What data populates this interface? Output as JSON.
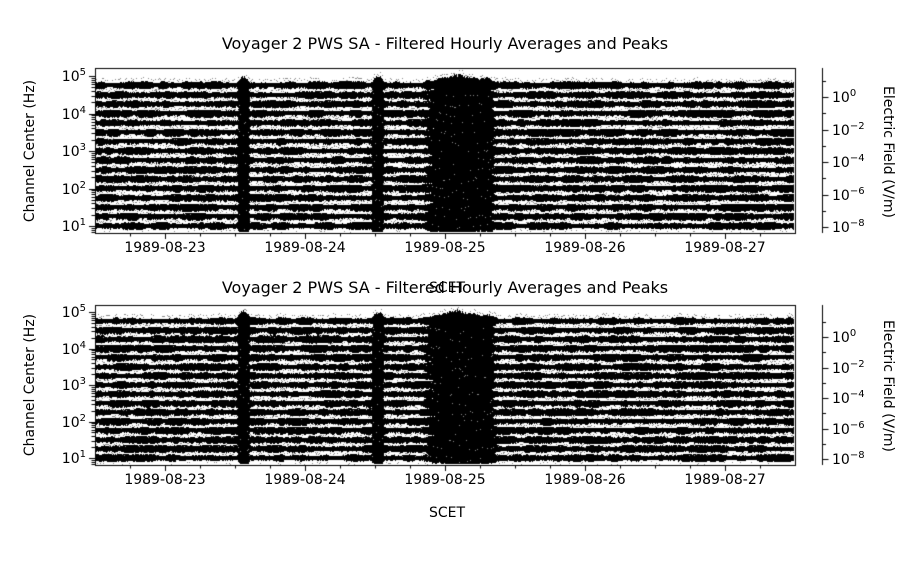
{
  "colors": {
    "background": "#ffffff",
    "axis": "#000000",
    "trace": "#000000",
    "speckle": "#8c8c8c"
  },
  "chart_data": [
    {
      "type": "line",
      "title": "Voyager 2 PWS SA - Filtered Hourly Averages and Peaks",
      "xlabel": "SCET",
      "ylabel": "Channel Center (Hz)",
      "ylabel_right": "Electric Field (V/m)",
      "x_ticks": [
        "1989-08-23",
        "1989-08-24",
        "1989-08-25",
        "1989-08-26",
        "1989-08-27"
      ],
      "x_range": [
        "1989-08-22 12:00",
        "1989-08-27 12:00"
      ],
      "y_scale": "log",
      "y_ticks_left": [
        "10^5",
        "10^4",
        "10^3",
        "10^2",
        "10^1"
      ],
      "y_ticks_right": [
        "10^0",
        "10^-2",
        "10^-4",
        "10^-6",
        "10^-8"
      ],
      "channels_hz": [
        10,
        17.8,
        31.1,
        56.2,
        100,
        178,
        311,
        562,
        1000,
        1780,
        3110,
        5620,
        10000,
        17800,
        31100,
        56200
      ],
      "events": [
        {
          "time_hours": 25.4,
          "width_hours": 2.2,
          "intensity": 0.95
        },
        {
          "time_hours": 48.4,
          "width_hours": 2.2,
          "intensity": 0.9
        },
        {
          "time_hours": 62.5,
          "width_hours": 13.0,
          "intensity": 0.7
        },
        {
          "time_hours": 62.0,
          "width_hours": 5.0,
          "intensity": 1.0
        },
        {
          "time_hours": 67.0,
          "width_hours": 3.0,
          "intensity": 0.6
        }
      ],
      "grid": false,
      "legend": null
    },
    {
      "type": "line",
      "title": "Voyager 2 PWS SA - Filtered Hourly Averages and Peaks",
      "xlabel": "SCET",
      "ylabel": "Channel Center (Hz)",
      "ylabel_right": "Electric Field (V/m)",
      "x_ticks": [
        "1989-08-23",
        "1989-08-24",
        "1989-08-25",
        "1989-08-26",
        "1989-08-27"
      ],
      "x_range": [
        "1989-08-22 12:00",
        "1989-08-27 12:00"
      ],
      "y_scale": "log",
      "y_ticks_left": [
        "10^5",
        "10^4",
        "10^3",
        "10^2",
        "10^1"
      ],
      "y_ticks_right": [
        "10^0",
        "10^-2",
        "10^-4",
        "10^-6",
        "10^-8"
      ],
      "channels_hz": [
        10,
        17.8,
        31.1,
        56.2,
        100,
        178,
        311,
        562,
        1000,
        1780,
        3110,
        5620,
        10000,
        17800,
        31100,
        56200
      ],
      "events": [
        {
          "time_hours": 25.4,
          "width_hours": 2.2,
          "intensity": 0.95
        },
        {
          "time_hours": 48.4,
          "width_hours": 2.2,
          "intensity": 0.9
        },
        {
          "time_hours": 62.5,
          "width_hours": 13.0,
          "intensity": 0.7
        },
        {
          "time_hours": 62.0,
          "width_hours": 5.0,
          "intensity": 1.0
        },
        {
          "time_hours": 67.0,
          "width_hours": 3.0,
          "intensity": 0.6
        }
      ],
      "grid": false,
      "legend": null
    }
  ]
}
